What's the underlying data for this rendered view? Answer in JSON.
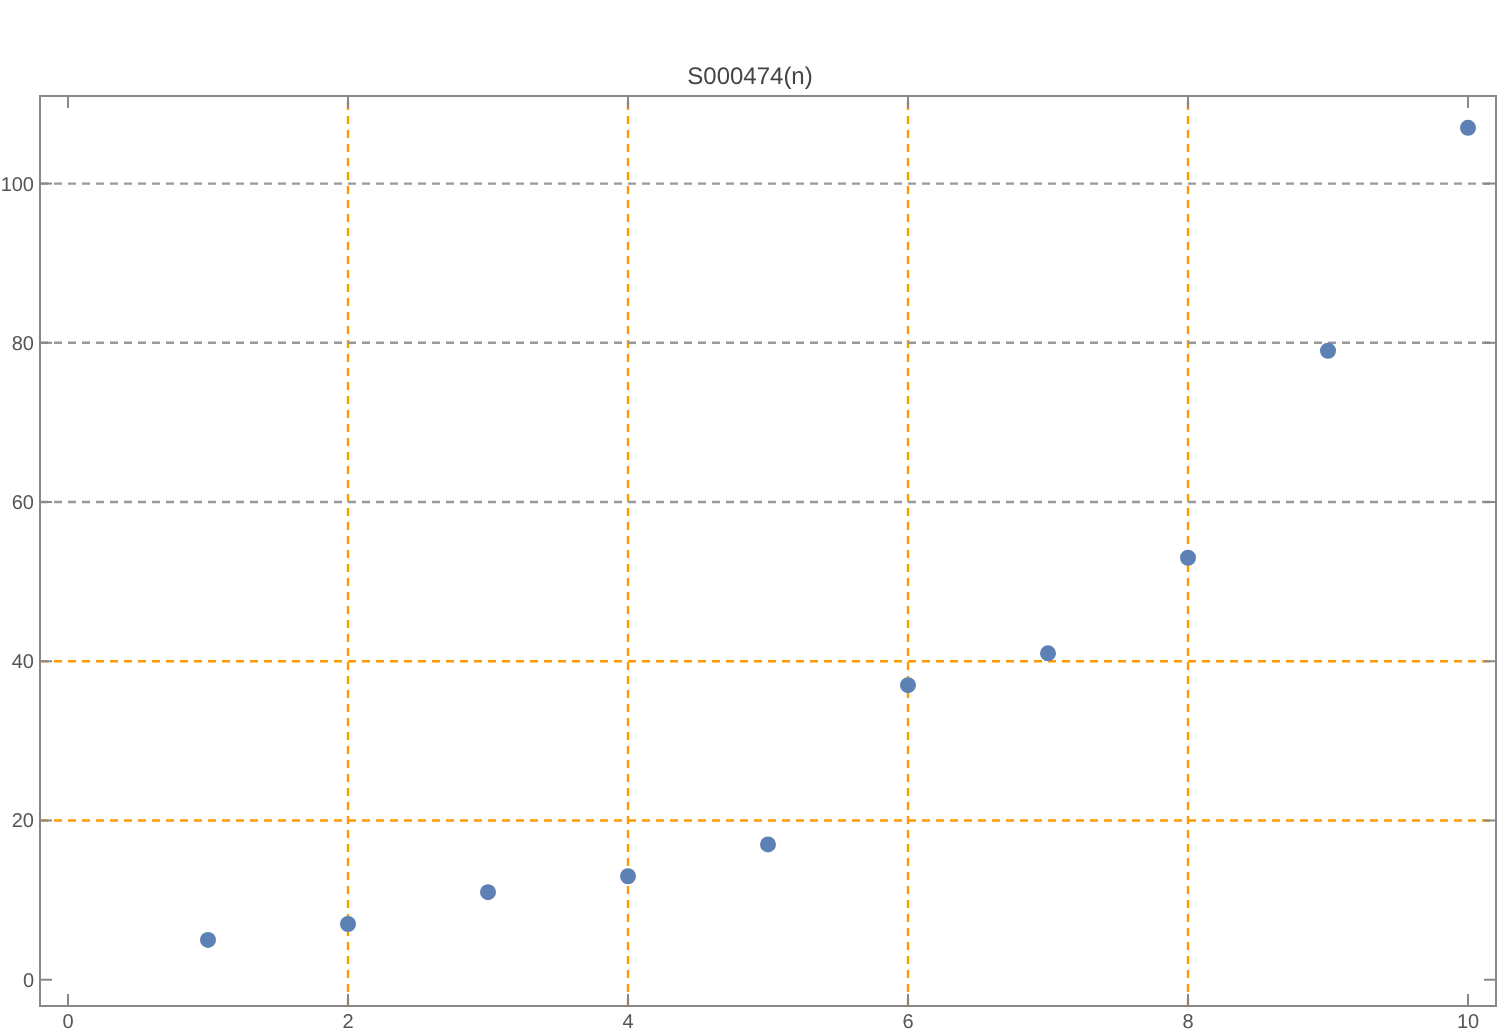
{
  "chart_data": {
    "type": "scatter",
    "title": "S000474(n)",
    "x": [
      1,
      2,
      3,
      4,
      5,
      6,
      7,
      8,
      9,
      10
    ],
    "series": [
      {
        "color": "#5e81b5",
        "values": [
          5,
          7,
          11,
          13,
          17,
          37,
          41,
          53,
          79,
          107
        ]
      }
    ],
    "xlim": [
      -0.2,
      10.2
    ],
    "ylim": [
      -3.3,
      111
    ],
    "xticks": [
      0,
      2,
      4,
      6,
      8,
      10
    ],
    "yticks": [
      0,
      20,
      40,
      60,
      80,
      100
    ],
    "marker": "circle",
    "grid": false,
    "ref_lines": [
      {
        "axis": "x",
        "value": 2,
        "color": "#ff9900",
        "line_style": "dashed"
      },
      {
        "axis": "x",
        "value": 4,
        "color": "#ff9900",
        "line_style": "dashed"
      },
      {
        "axis": "x",
        "value": 6,
        "color": "#ff9900",
        "line_style": "dashed"
      },
      {
        "axis": "x",
        "value": 8,
        "color": "#ff9900",
        "line_style": "dashed"
      },
      {
        "axis": "y",
        "value": 20,
        "color": "#ff9900",
        "line_style": "dashed"
      },
      {
        "axis": "y",
        "value": 40,
        "color": "#ff9900",
        "line_style": "dashed"
      },
      {
        "axis": "y",
        "value": 60,
        "color": "#999999",
        "line_style": "dashed"
      },
      {
        "axis": "y",
        "value": 80,
        "color": "#999999",
        "line_style": "dashed"
      },
      {
        "axis": "y",
        "value": 100,
        "color": "#999999",
        "line_style": "dashed"
      }
    ]
  }
}
